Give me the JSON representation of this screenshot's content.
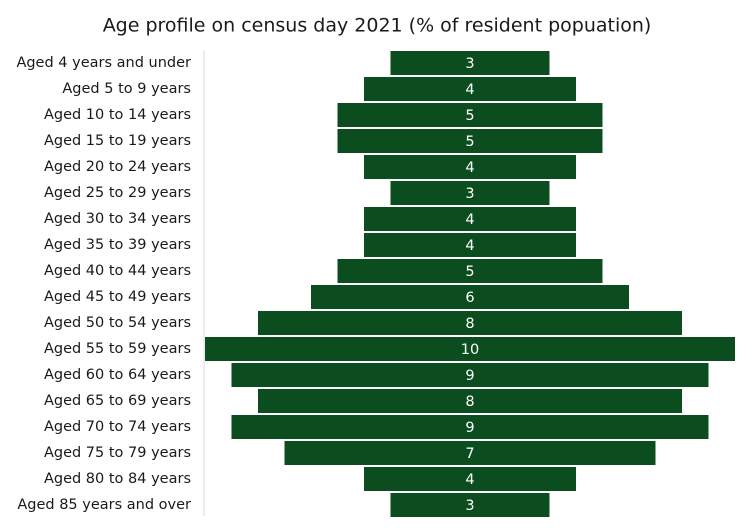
{
  "chart_data": {
    "type": "bar",
    "title": "Age profile on census day 2021 (% of resident popuation)",
    "categories": [
      "Aged 4 years and under",
      "Aged 5 to 9 years",
      "Aged 10 to 14 years",
      "Aged 15 to 19 years",
      "Aged 20 to 24 years",
      "Aged 25 to 29 years",
      "Aged 30 to 34 years",
      "Aged 35 to 39 years",
      "Aged 40 to 44 years",
      "Aged 45 to 49 years",
      "Aged 50 to 54 years",
      "Aged 55 to 59 years",
      "Aged 60 to 64 years",
      "Aged 65 to 69 years",
      "Aged 70 to 74 years",
      "Aged 75 to 79 years",
      "Aged 80 to 84 years",
      "Aged 85 years and over"
    ],
    "values": [
      3,
      4,
      5,
      5,
      4,
      3,
      4,
      4,
      5,
      6,
      8,
      10,
      9,
      8,
      9,
      7,
      4,
      3
    ],
    "color": "#0b4d1f"
  }
}
